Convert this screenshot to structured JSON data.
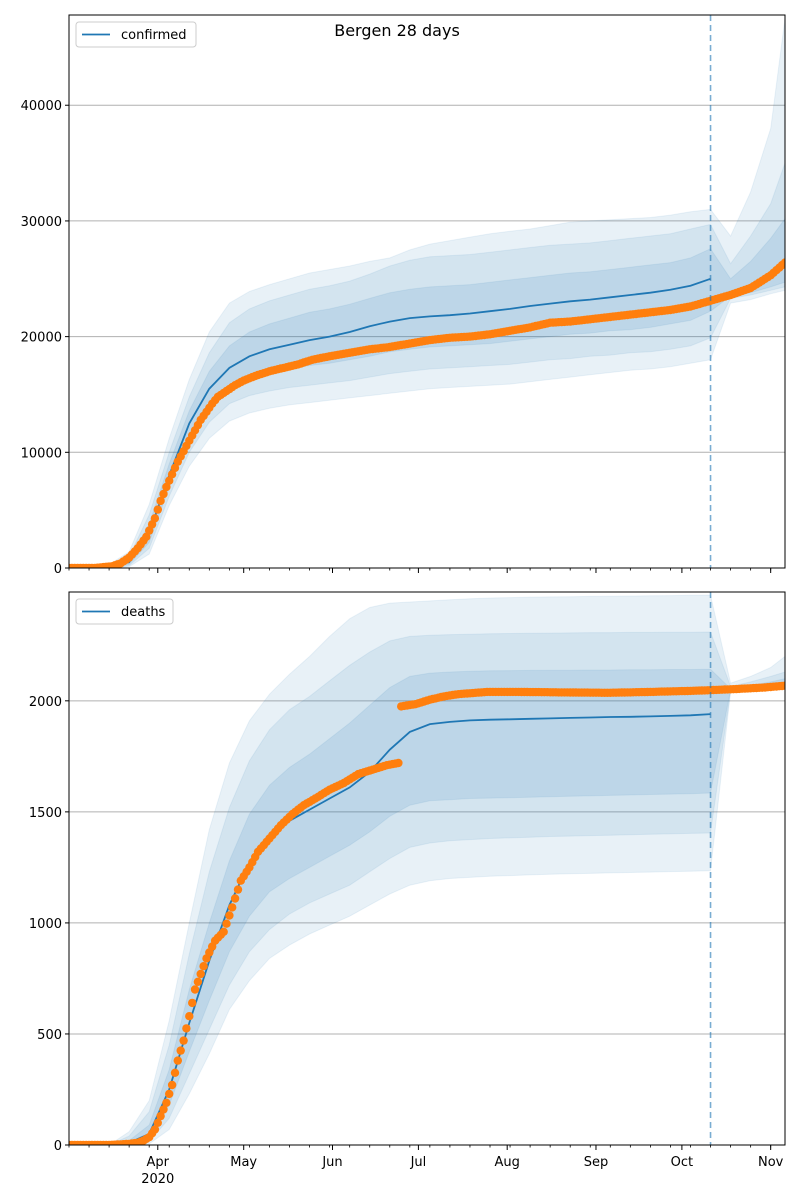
{
  "figure_title": "Bergen 28 days",
  "colors": {
    "model": "#1f77b4",
    "observed": "#ff7f0e",
    "band": "#1f77b4",
    "grid": "#b0b0b0",
    "axes": "#000000",
    "forecast_line": "#1f77b4"
  },
  "chart_data": [
    {
      "type": "line",
      "panel": "top",
      "legend": "confirmed",
      "legend_position": "upper left",
      "grid": "horizontal",
      "ylim": [
        0,
        47800
      ],
      "yticks": [
        0,
        10000,
        20000,
        30000,
        40000
      ],
      "forecast_start": "2020-10-11",
      "xlim": [
        "2020-03-01",
        "2020-11-06"
      ],
      "x": [
        "2020-03-01",
        "2020-03-08",
        "2020-03-15",
        "2020-03-22",
        "2020-03-29",
        "2020-04-05",
        "2020-04-12",
        "2020-04-19",
        "2020-04-26",
        "2020-05-03",
        "2020-05-10",
        "2020-05-17",
        "2020-05-24",
        "2020-05-31",
        "2020-06-07",
        "2020-06-14",
        "2020-06-21",
        "2020-06-28",
        "2020-07-05",
        "2020-07-12",
        "2020-07-19",
        "2020-07-26",
        "2020-08-02",
        "2020-08-09",
        "2020-08-16",
        "2020-08-23",
        "2020-08-30",
        "2020-09-06",
        "2020-09-13",
        "2020-09-20",
        "2020-09-27",
        "2020-10-04",
        "2020-10-11",
        "2020-10-18",
        "2020-10-25",
        "2020-11-01",
        "2020-11-06"
      ],
      "model": [
        0,
        0,
        100,
        500,
        3000,
        8000,
        12500,
        15500,
        17300,
        18300,
        18900,
        19300,
        19700,
        20000,
        20400,
        20900,
        21300,
        21600,
        21750,
        21850,
        22000,
        22200,
        22400,
        22650,
        22850,
        23050,
        23200,
        23400,
        23600,
        23800,
        24050,
        24400,
        25000,
        null,
        null,
        null,
        null
      ],
      "band_50": [
        [
          0,
          0
        ],
        [
          0,
          0
        ],
        [
          50,
          150
        ],
        [
          300,
          700
        ],
        [
          2200,
          3800
        ],
        [
          7000,
          9000
        ],
        [
          11200,
          13600
        ],
        [
          14000,
          17000
        ],
        [
          15600,
          19200
        ],
        [
          16400,
          20400
        ],
        [
          16900,
          21100
        ],
        [
          17200,
          21600
        ],
        [
          17500,
          22100
        ],
        [
          17700,
          22400
        ],
        [
          18000,
          22800
        ],
        [
          18300,
          23300
        ],
        [
          18700,
          23800
        ],
        [
          18900,
          24100
        ],
        [
          19100,
          24300
        ],
        [
          19200,
          24400
        ],
        [
          19300,
          24500
        ],
        [
          19400,
          24700
        ],
        [
          19600,
          24900
        ],
        [
          19800,
          25100
        ],
        [
          20000,
          25300
        ],
        [
          20200,
          25500
        ],
        [
          20300,
          25600
        ],
        [
          20500,
          25800
        ],
        [
          20600,
          26000
        ],
        [
          20800,
          26200
        ],
        [
          21100,
          26400
        ],
        [
          21400,
          26800
        ],
        [
          22200,
          27600
        ],
        [
          23500,
          25000
        ],
        [
          23800,
          26500
        ],
        [
          24300,
          28500
        ],
        [
          24700,
          30200
        ]
      ],
      "band_80": [
        [
          0,
          0
        ],
        [
          0,
          0
        ],
        [
          20,
          200
        ],
        [
          200,
          1000
        ],
        [
          1700,
          4600
        ],
        [
          6200,
          10000
        ],
        [
          10000,
          14800
        ],
        [
          12600,
          18600
        ],
        [
          14200,
          21200
        ],
        [
          14900,
          22400
        ],
        [
          15300,
          23100
        ],
        [
          15600,
          23600
        ],
        [
          15800,
          24100
        ],
        [
          16000,
          24400
        ],
        [
          16200,
          24800
        ],
        [
          16500,
          25400
        ],
        [
          16800,
          26100
        ],
        [
          17000,
          26600
        ],
        [
          17200,
          26900
        ],
        [
          17300,
          27000
        ],
        [
          17400,
          27100
        ],
        [
          17500,
          27300
        ],
        [
          17600,
          27500
        ],
        [
          17800,
          27700
        ],
        [
          18000,
          27900
        ],
        [
          18100,
          28000
        ],
        [
          18300,
          28100
        ],
        [
          18400,
          28300
        ],
        [
          18600,
          28500
        ],
        [
          18700,
          28700
        ],
        [
          18900,
          28900
        ],
        [
          19200,
          29300
        ],
        [
          19900,
          29700
        ],
        [
          23300,
          26300
        ],
        [
          23600,
          28700
        ],
        [
          24000,
          31500
        ],
        [
          24300,
          35000
        ]
      ],
      "band_95": [
        [
          0,
          0
        ],
        [
          0,
          0
        ],
        [
          0,
          300
        ],
        [
          100,
          1400
        ],
        [
          1200,
          5500
        ],
        [
          5400,
          11200
        ],
        [
          8800,
          16300
        ],
        [
          11200,
          20400
        ],
        [
          12700,
          22900
        ],
        [
          13400,
          23900
        ],
        [
          13800,
          24500
        ],
        [
          14100,
          25000
        ],
        [
          14300,
          25500
        ],
        [
          14500,
          25800
        ],
        [
          14700,
          26100
        ],
        [
          14900,
          26500
        ],
        [
          15100,
          26800
        ],
        [
          15300,
          27500
        ],
        [
          15500,
          28000
        ],
        [
          15600,
          28300
        ],
        [
          15700,
          28600
        ],
        [
          15800,
          28900
        ],
        [
          15900,
          29100
        ],
        [
          16100,
          29300
        ],
        [
          16300,
          29600
        ],
        [
          16500,
          29900
        ],
        [
          16700,
          30000
        ],
        [
          16900,
          30100
        ],
        [
          17100,
          30200
        ],
        [
          17200,
          30300
        ],
        [
          17400,
          30500
        ],
        [
          17700,
          30800
        ],
        [
          18000,
          31000
        ],
        [
          22900,
          28700
        ],
        [
          23200,
          32500
        ],
        [
          23700,
          38000
        ],
        [
          24000,
          47500
        ]
      ],
      "observed_x": [
        "2020-03-01",
        "2020-03-10",
        "2020-03-16",
        "2020-03-19",
        "2020-03-22",
        "2020-03-25",
        "2020-03-28",
        "2020-03-31",
        "2020-04-02",
        "2020-04-04",
        "2020-04-06",
        "2020-04-08",
        "2020-04-10",
        "2020-04-12",
        "2020-04-14",
        "2020-04-16",
        "2020-04-18",
        "2020-04-20",
        "2020-04-22",
        "2020-04-25",
        "2020-04-28",
        "2020-05-01",
        "2020-05-05",
        "2020-05-10",
        "2020-05-15",
        "2020-05-20",
        "2020-05-25",
        "2020-05-31",
        "2020-06-07",
        "2020-06-14",
        "2020-06-21",
        "2020-06-28",
        "2020-07-05",
        "2020-07-12",
        "2020-07-19",
        "2020-07-26",
        "2020-08-02",
        "2020-08-09",
        "2020-08-16",
        "2020-08-23",
        "2020-08-30",
        "2020-09-06",
        "2020-09-13",
        "2020-09-20",
        "2020-09-27",
        "2020-10-04",
        "2020-10-11",
        "2020-10-18",
        "2020-10-25",
        "2020-11-01",
        "2020-11-06"
      ],
      "observed_y": [
        0,
        0,
        150,
        400,
        900,
        1700,
        2700,
        4300,
        5800,
        7000,
        8100,
        9200,
        10100,
        11000,
        11900,
        12800,
        13500,
        14200,
        14800,
        15300,
        15800,
        16200,
        16600,
        17000,
        17300,
        17600,
        18000,
        18300,
        18600,
        18900,
        19100,
        19400,
        19700,
        19900,
        20000,
        20200,
        20500,
        20800,
        21200,
        21300,
        21500,
        21700,
        21900,
        22100,
        22300,
        22600,
        23100,
        23600,
        24200,
        25300,
        26400
      ]
    },
    {
      "type": "line",
      "panel": "bottom",
      "legend": "deaths",
      "legend_position": "upper left",
      "grid": "horizontal",
      "ylim": [
        0,
        2490
      ],
      "yticks": [
        0,
        500,
        1000,
        1500,
        2000
      ],
      "forecast_start": "2020-10-11",
      "xlim": [
        "2020-03-01",
        "2020-11-06"
      ],
      "x": [
        "2020-03-01",
        "2020-03-08",
        "2020-03-15",
        "2020-03-22",
        "2020-03-29",
        "2020-04-05",
        "2020-04-12",
        "2020-04-19",
        "2020-04-26",
        "2020-05-03",
        "2020-05-10",
        "2020-05-17",
        "2020-05-24",
        "2020-05-31",
        "2020-06-07",
        "2020-06-14",
        "2020-06-21",
        "2020-06-28",
        "2020-07-05",
        "2020-07-12",
        "2020-07-19",
        "2020-07-26",
        "2020-08-02",
        "2020-08-09",
        "2020-08-16",
        "2020-08-23",
        "2020-08-30",
        "2020-09-06",
        "2020-09-13",
        "2020-09-20",
        "2020-09-27",
        "2020-10-04",
        "2020-10-11",
        "2020-10-18",
        "2020-10-25",
        "2020-11-01",
        "2020-11-06"
      ],
      "model": [
        0,
        0,
        0,
        10,
        50,
        250,
        550,
        830,
        1080,
        1270,
        1390,
        1460,
        1510,
        1560,
        1610,
        1680,
        1780,
        1860,
        1895,
        1905,
        1912,
        1915,
        1917,
        1919,
        1921,
        1923,
        1925,
        1927,
        1928,
        1930,
        1932,
        1935,
        1940,
        null,
        null,
        null,
        null
      ],
      "band_50": [
        [
          0,
          0
        ],
        [
          0,
          0
        ],
        [
          0,
          0
        ],
        [
          5,
          20
        ],
        [
          30,
          90
        ],
        [
          180,
          340
        ],
        [
          420,
          700
        ],
        [
          650,
          1000
        ],
        [
          870,
          1280
        ],
        [
          1030,
          1490
        ],
        [
          1140,
          1620
        ],
        [
          1200,
          1700
        ],
        [
          1250,
          1760
        ],
        [
          1300,
          1830
        ],
        [
          1350,
          1900
        ],
        [
          1410,
          1980
        ],
        [
          1480,
          2060
        ],
        [
          1530,
          2110
        ],
        [
          1550,
          2125
        ],
        [
          1555,
          2130
        ],
        [
          1560,
          2133
        ],
        [
          1562,
          2135
        ],
        [
          1564,
          2136
        ],
        [
          1566,
          2137
        ],
        [
          1568,
          2138
        ],
        [
          1570,
          2138
        ],
        [
          1572,
          2139
        ],
        [
          1574,
          2139
        ],
        [
          1576,
          2140
        ],
        [
          1578,
          2140
        ],
        [
          1580,
          2141
        ],
        [
          1582,
          2141
        ],
        [
          1585,
          2142
        ],
        [
          2050,
          2055
        ],
        [
          2055,
          2070
        ],
        [
          2060,
          2085
        ],
        [
          2065,
          2100
        ]
      ],
      "band_80": [
        [
          0,
          0
        ],
        [
          0,
          0
        ],
        [
          0,
          0
        ],
        [
          2,
          40
        ],
        [
          15,
          150
        ],
        [
          120,
          450
        ],
        [
          320,
          860
        ],
        [
          520,
          1230
        ],
        [
          720,
          1520
        ],
        [
          870,
          1730
        ],
        [
          970,
          1870
        ],
        [
          1040,
          1960
        ],
        [
          1090,
          2020
        ],
        [
          1130,
          2090
        ],
        [
          1170,
          2160
        ],
        [
          1230,
          2220
        ],
        [
          1290,
          2270
        ],
        [
          1340,
          2290
        ],
        [
          1360,
          2295
        ],
        [
          1370,
          2298
        ],
        [
          1375,
          2300
        ],
        [
          1380,
          2302
        ],
        [
          1383,
          2303
        ],
        [
          1386,
          2304
        ],
        [
          1389,
          2305
        ],
        [
          1391,
          2306
        ],
        [
          1393,
          2307
        ],
        [
          1395,
          2307
        ],
        [
          1397,
          2308
        ],
        [
          1399,
          2308
        ],
        [
          1401,
          2309
        ],
        [
          1403,
          2309
        ],
        [
          1405,
          2310
        ],
        [
          2045,
          2065
        ],
        [
          2050,
          2085
        ],
        [
          2055,
          2110
        ],
        [
          2060,
          2130
        ]
      ],
      "band_95": [
        [
          0,
          0
        ],
        [
          0,
          0
        ],
        [
          0,
          0
        ],
        [
          0,
          60
        ],
        [
          5,
          200
        ],
        [
          70,
          560
        ],
        [
          230,
          1000
        ],
        [
          410,
          1420
        ],
        [
          610,
          1720
        ],
        [
          740,
          1910
        ],
        [
          840,
          2030
        ],
        [
          900,
          2120
        ],
        [
          950,
          2200
        ],
        [
          990,
          2290
        ],
        [
          1030,
          2370
        ],
        [
          1080,
          2420
        ],
        [
          1130,
          2440
        ],
        [
          1170,
          2445
        ],
        [
          1190,
          2450
        ],
        [
          1200,
          2455
        ],
        [
          1205,
          2460
        ],
        [
          1210,
          2463
        ],
        [
          1213,
          2465
        ],
        [
          1216,
          2467
        ],
        [
          1219,
          2468
        ],
        [
          1221,
          2469
        ],
        [
          1223,
          2470
        ],
        [
          1225,
          2471
        ],
        [
          1227,
          2472
        ],
        [
          1229,
          2473
        ],
        [
          1231,
          2474
        ],
        [
          1233,
          2475
        ],
        [
          1235,
          2476
        ],
        [
          2040,
          2080
        ],
        [
          2045,
          2110
        ],
        [
          2050,
          2150
        ],
        [
          2055,
          2200
        ]
      ],
      "observed_x": [
        "2020-03-01",
        "2020-03-15",
        "2020-03-22",
        "2020-03-25",
        "2020-03-27",
        "2020-03-29",
        "2020-03-31",
        "2020-04-02",
        "2020-04-04",
        "2020-04-06",
        "2020-04-08",
        "2020-04-10",
        "2020-04-12",
        "2020-04-14",
        "2020-04-16",
        "2020-04-18",
        "2020-04-21",
        "2020-04-24",
        "2020-04-27",
        "2020-04-30",
        "2020-05-03",
        "2020-05-06",
        "2020-05-10",
        "2020-05-14",
        "2020-05-18",
        "2020-05-22",
        "2020-05-26",
        "2020-05-31",
        "2020-06-05",
        "2020-06-10",
        "2020-06-15",
        "2020-06-20",
        "2020-06-24",
        "2020-06-25",
        "2020-06-30",
        "2020-07-05",
        "2020-07-10",
        "2020-07-15",
        "2020-07-25",
        "2020-08-05",
        "2020-08-20",
        "2020-09-05",
        "2020-09-20",
        "2020-10-05",
        "2020-10-11",
        "2020-10-20",
        "2020-10-30",
        "2020-11-06"
      ],
      "observed_y": [
        0,
        0,
        5,
        10,
        20,
        35,
        70,
        130,
        190,
        270,
        380,
        470,
        580,
        700,
        770,
        840,
        920,
        960,
        1070,
        1190,
        1250,
        1320,
        1380,
        1440,
        1490,
        1530,
        1560,
        1600,
        1630,
        1670,
        1690,
        1710,
        1720,
        1975,
        1985,
        2005,
        2020,
        2030,
        2040,
        2040,
        2038,
        2036,
        2040,
        2045,
        2048,
        2053,
        2060,
        2068
      ]
    }
  ],
  "x_tick_labels": [
    {
      "date": "2020-04-01",
      "label": "Apr",
      "sublabel": "2020"
    },
    {
      "date": "2020-05-01",
      "label": "May",
      "sublabel": ""
    },
    {
      "date": "2020-06-01",
      "label": "Jun",
      "sublabel": ""
    },
    {
      "date": "2020-07-01",
      "label": "Jul",
      "sublabel": ""
    },
    {
      "date": "2020-08-01",
      "label": "Aug",
      "sublabel": ""
    },
    {
      "date": "2020-09-01",
      "label": "Sep",
      "sublabel": ""
    },
    {
      "date": "2020-10-01",
      "label": "Oct",
      "sublabel": ""
    },
    {
      "date": "2020-11-01",
      "label": "Nov",
      "sublabel": ""
    }
  ]
}
